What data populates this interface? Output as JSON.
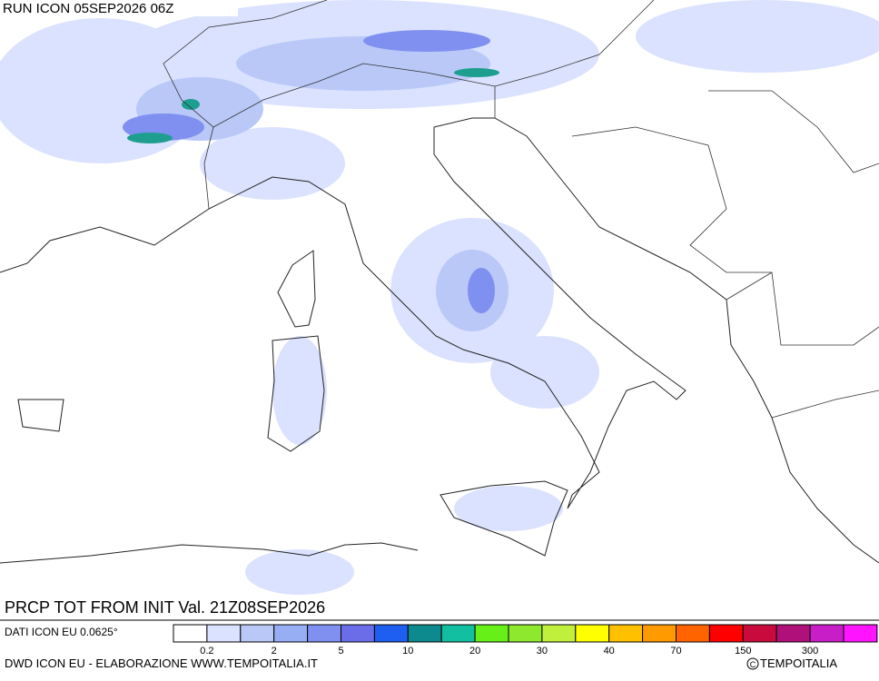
{
  "header": {
    "run": "RUN ICON 05SEP2026 06Z"
  },
  "map": {
    "field": "PRCP TOT FROM INIT Val. 21Z08SEP2026"
  },
  "legend": {
    "source": "DATI ICON EU 0.0625°",
    "colors": [
      "#ffffff",
      "#dbe2ff",
      "#b9c8f7",
      "#98aef4",
      "#8090f0",
      "#6a6ce8",
      "#1e5ef0",
      "#0c8a8e",
      "#12bfa0",
      "#67f018",
      "#8de82e",
      "#c0f03c",
      "#ffff00",
      "#ffc000",
      "#ff9a00",
      "#ff6400",
      "#ff0000",
      "#c80a3c",
      "#b0107a",
      "#c81ec8",
      "#ff14ff"
    ],
    "labels": [
      0.2,
      2,
      5,
      10,
      20,
      30,
      40,
      70,
      150,
      300
    ]
  },
  "footer": {
    "credit": "DWD ICON EU - ELABORAZIONE WWW.TEMPOITALIA.IT",
    "copyright": "TEMPOITALIA"
  }
}
